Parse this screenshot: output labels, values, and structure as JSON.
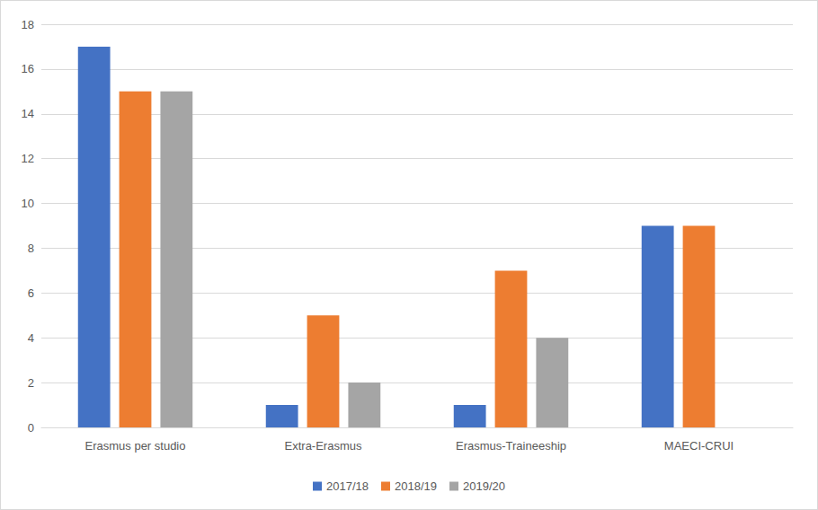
{
  "chart_data": {
    "type": "bar",
    "categories": [
      "Erasmus per studio",
      "Extra-Erasmus",
      "Erasmus-Traineeship",
      "MAECI-CRUI"
    ],
    "series": [
      {
        "name": "2017/18",
        "color": "#4472c4",
        "values": [
          17,
          1,
          1,
          9
        ]
      },
      {
        "name": "2018/19",
        "color": "#ed7d31",
        "values": [
          15,
          5,
          7,
          9
        ]
      },
      {
        "name": "2019/20",
        "color": "#a5a5a5",
        "values": [
          15,
          2,
          4,
          null
        ]
      }
    ],
    "ylim": [
      0,
      18
    ],
    "yticks": [
      0,
      2,
      4,
      6,
      8,
      10,
      12,
      14,
      16,
      18
    ],
    "grid": true,
    "legend": "bottom"
  }
}
